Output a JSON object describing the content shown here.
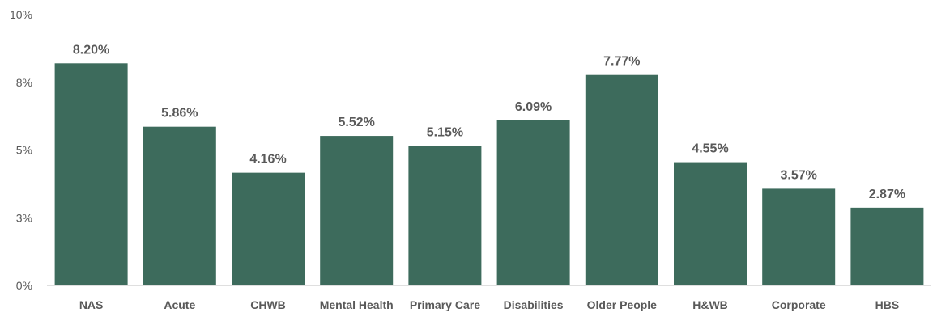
{
  "chart_data": {
    "type": "bar",
    "categories": [
      "NAS",
      "Acute",
      "CHWB",
      "Mental Health",
      "Primary Care",
      "Disabilities",
      "Older People",
      "H&WB",
      "Corporate",
      "HBS"
    ],
    "values": [
      8.2,
      5.86,
      4.16,
      5.52,
      5.15,
      6.09,
      7.77,
      4.55,
      3.57,
      2.87
    ],
    "data_labels": [
      "8.20%",
      "5.86%",
      "4.16%",
      "5.52%",
      "5.15%",
      "6.09%",
      "7.77%",
      "4.55%",
      "3.57%",
      "2.87%"
    ],
    "yticks": [
      {
        "value": 0,
        "label": "0%"
      },
      {
        "value": 2.5,
        "label": "3%"
      },
      {
        "value": 5,
        "label": "5%"
      },
      {
        "value": 7.5,
        "label": "8%"
      },
      {
        "value": 10,
        "label": "10%"
      }
    ],
    "ylim": [
      0,
      10
    ],
    "title": "",
    "xlabel": "",
    "ylabel": "",
    "grid": false,
    "legend": "none",
    "colors": {
      "bar": "#3d6b5c",
      "text": "#595959",
      "axis": "#bfbfbf"
    }
  }
}
